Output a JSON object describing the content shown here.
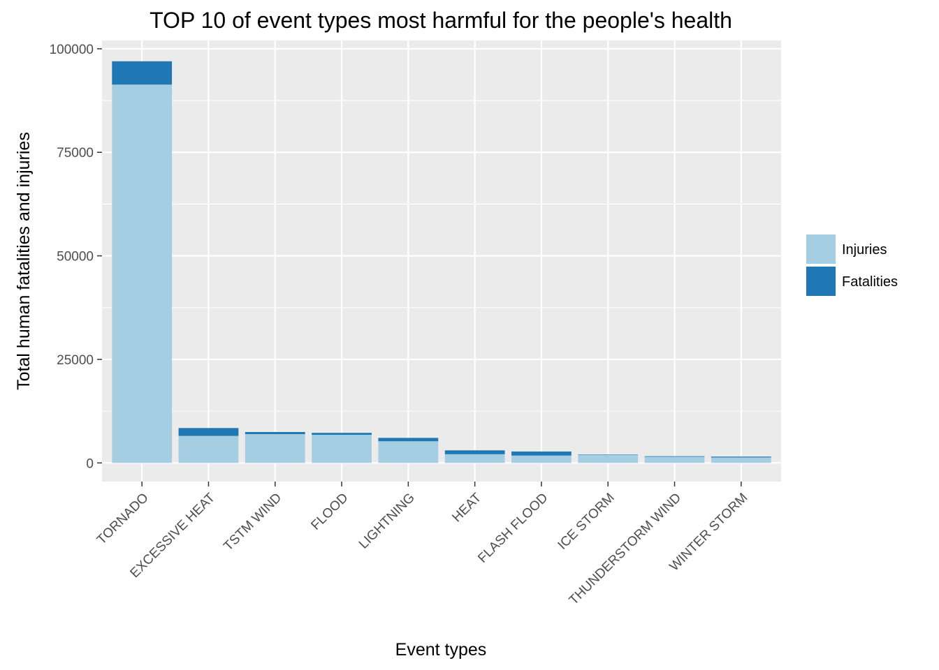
{
  "chart_data": {
    "type": "bar",
    "stacked": true,
    "title": "TOP 10 of  event types most harmful for the people's health",
    "xlabel": "Event types",
    "ylabel": "Total human fatalities  and injuries",
    "categories": [
      "TORNADO",
      "EXCESSIVE HEAT",
      "TSTM WIND",
      "FLOOD",
      "LIGHTNING",
      "HEAT",
      "FLASH FLOOD",
      "ICE STORM",
      "THUNDERSTORM WIND",
      "WINTER STORM"
    ],
    "series": [
      {
        "name": "Injuries",
        "color": "#a6cee3",
        "values": [
          91346,
          6525,
          6957,
          6789,
          5230,
          2100,
          1777,
          1975,
          1488,
          1321
        ]
      },
      {
        "name": "Fatalities",
        "color": "#1f78b4",
        "values": [
          5633,
          1903,
          504,
          470,
          816,
          937,
          978,
          89,
          133,
          206
        ]
      }
    ],
    "ylim": [
      -4500,
      102000
    ],
    "yticks": [
      0,
      25000,
      50000,
      75000,
      100000
    ],
    "grid": true,
    "panel_color": "#ebebeb",
    "legend_position": "right",
    "x_tick_rotation": -45
  }
}
